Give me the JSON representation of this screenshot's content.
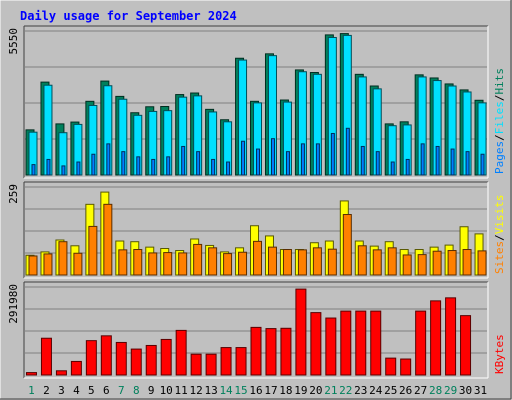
{
  "chart_data": [
    {
      "type": "bar",
      "title": "Daily usage for September 2024",
      "ymax_label": "5550",
      "ylim": [
        0,
        5550
      ],
      "legend": [
        "Pages",
        "Files",
        "Hits"
      ],
      "colors": {
        "hits": "#00805c",
        "files": "#00e0ff",
        "pages": "#0080ff"
      },
      "categories": [
        "1",
        "2",
        "3",
        "4",
        "5",
        "6",
        "7",
        "8",
        "9",
        "10",
        "11",
        "12",
        "13",
        "14",
        "15",
        "16",
        "17",
        "18",
        "19",
        "20",
        "21",
        "22",
        "23",
        "24",
        "25",
        "26",
        "27",
        "28",
        "29",
        "30",
        "31"
      ],
      "series": [
        {
          "name": "Hits",
          "values": [
            1740,
            3580,
            1970,
            2040,
            2840,
            3620,
            3030,
            2400,
            2630,
            2640,
            3100,
            3160,
            2530,
            2130,
            4500,
            2840,
            4670,
            2890,
            4050,
            3950,
            5400,
            5450,
            3880,
            3430,
            1970,
            2050,
            3860,
            3740,
            3510,
            3280,
            2880
          ]
        },
        {
          "name": "Files",
          "values": [
            1650,
            3460,
            1630,
            1950,
            2680,
            3440,
            2920,
            2300,
            2450,
            2480,
            3000,
            3050,
            2430,
            2050,
            4430,
            2780,
            4600,
            2810,
            3980,
            3880,
            5300,
            5380,
            3780,
            3320,
            1900,
            1930,
            3780,
            3640,
            3430,
            3200,
            2780
          ]
        },
        {
          "name": "Pages",
          "values": [
            400,
            600,
            350,
            500,
            800,
            1200,
            900,
            700,
            600,
            700,
            1100,
            900,
            600,
            500,
            1300,
            1000,
            1400,
            900,
            1200,
            1200,
            1600,
            1800,
            1100,
            900,
            500,
            600,
            1200,
            1100,
            1000,
            900,
            800
          ]
        }
      ]
    },
    {
      "type": "bar",
      "ymax_label": "259",
      "ylim": [
        0,
        259
      ],
      "legend": [
        "Sites",
        "Visits"
      ],
      "colors": {
        "visits": "#ffff00",
        "sites": "#ff8000"
      },
      "categories": [
        "1",
        "2",
        "3",
        "4",
        "5",
        "6",
        "7",
        "8",
        "9",
        "10",
        "11",
        "12",
        "13",
        "14",
        "15",
        "16",
        "17",
        "18",
        "19",
        "20",
        "21",
        "22",
        "23",
        "24",
        "25",
        "26",
        "27",
        "28",
        "29",
        "30",
        "31"
      ],
      "series": [
        {
          "name": "Visits",
          "values": [
            58,
            68,
            103,
            86,
            208,
            244,
            100,
            98,
            82,
            78,
            72,
            106,
            87,
            68,
            80,
            145,
            115,
            75,
            75,
            95,
            100,
            218,
            100,
            85,
            98,
            75,
            75,
            82,
            88,
            142,
            121
          ]
        },
        {
          "name": "Sites",
          "values": [
            56,
            62,
            98,
            64,
            143,
            208,
            74,
            75,
            65,
            66,
            65,
            90,
            80,
            63,
            67,
            99,
            82,
            75,
            74,
            80,
            76,
            178,
            86,
            74,
            80,
            59,
            60,
            70,
            72,
            75,
            71
          ]
        }
      ]
    },
    {
      "type": "bar",
      "ymax_label": "291980",
      "ylim": [
        0,
        291980
      ],
      "legend": [
        "KBytes"
      ],
      "colors": {
        "kbytes": "#ff0000"
      },
      "categories": [
        "1",
        "2",
        "3",
        "4",
        "5",
        "6",
        "7",
        "8",
        "9",
        "10",
        "11",
        "12",
        "13",
        "14",
        "15",
        "16",
        "17",
        "18",
        "19",
        "20",
        "21",
        "22",
        "23",
        "24",
        "25",
        "26",
        "27",
        "28",
        "29",
        "30",
        "31"
      ],
      "series": [
        {
          "name": "KBytes",
          "values": [
            8000,
            122000,
            14000,
            45000,
            114000,
            130000,
            108000,
            86000,
            98000,
            118000,
            148000,
            69000,
            69000,
            91000,
            91000,
            158000,
            154000,
            155000,
            285000,
            207000,
            189000,
            212000,
            212000,
            212000,
            56000,
            53000,
            212000,
            246000,
            256000,
            197000,
            0
          ]
        }
      ]
    }
  ],
  "weekend_days": [
    "1",
    "7",
    "8",
    "14",
    "15",
    "21",
    "22",
    "28",
    "29"
  ],
  "colors": {
    "background": "#c0c0c0",
    "grid": "#808080",
    "title": "#0000ff",
    "axis_text": "#000000",
    "weekend_text": "#00805c"
  }
}
